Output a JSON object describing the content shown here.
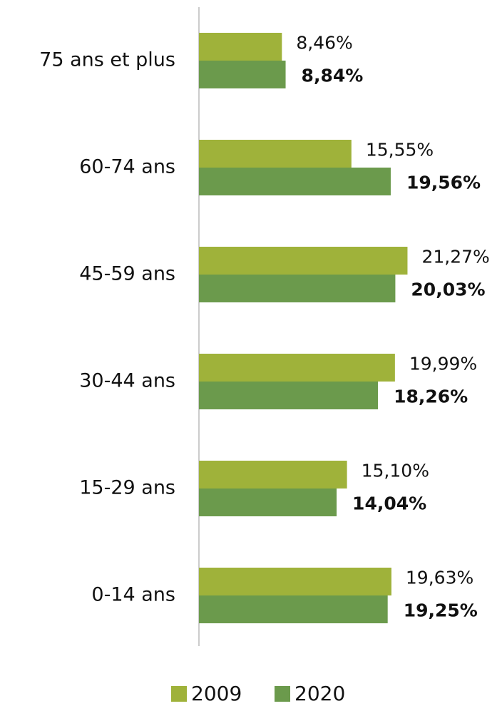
{
  "chart_data": {
    "type": "barh",
    "categories": [
      "75 ans et plus",
      "60-74 ans",
      "45-59 ans",
      "30-44 ans",
      "15-29 ans",
      "0-14 ans"
    ],
    "series": [
      {
        "name": "2009",
        "color": "#9fb23a",
        "values": [
          8.46,
          15.55,
          21.27,
          19.99,
          15.1,
          19.63
        ],
        "value_labels": [
          "8,46%",
          "15,55%",
          "21,27%",
          "19,99%",
          "15,10%",
          "19,63%"
        ]
      },
      {
        "name": "2020",
        "color": "#6b9a4c",
        "values": [
          8.84,
          19.56,
          20.03,
          18.26,
          14.04,
          19.25
        ],
        "value_labels": [
          "8,84%",
          "19,56%",
          "20,03%",
          "18,26%",
          "14,04%",
          "19,25%"
        ]
      }
    ],
    "legend": "bottom"
  }
}
